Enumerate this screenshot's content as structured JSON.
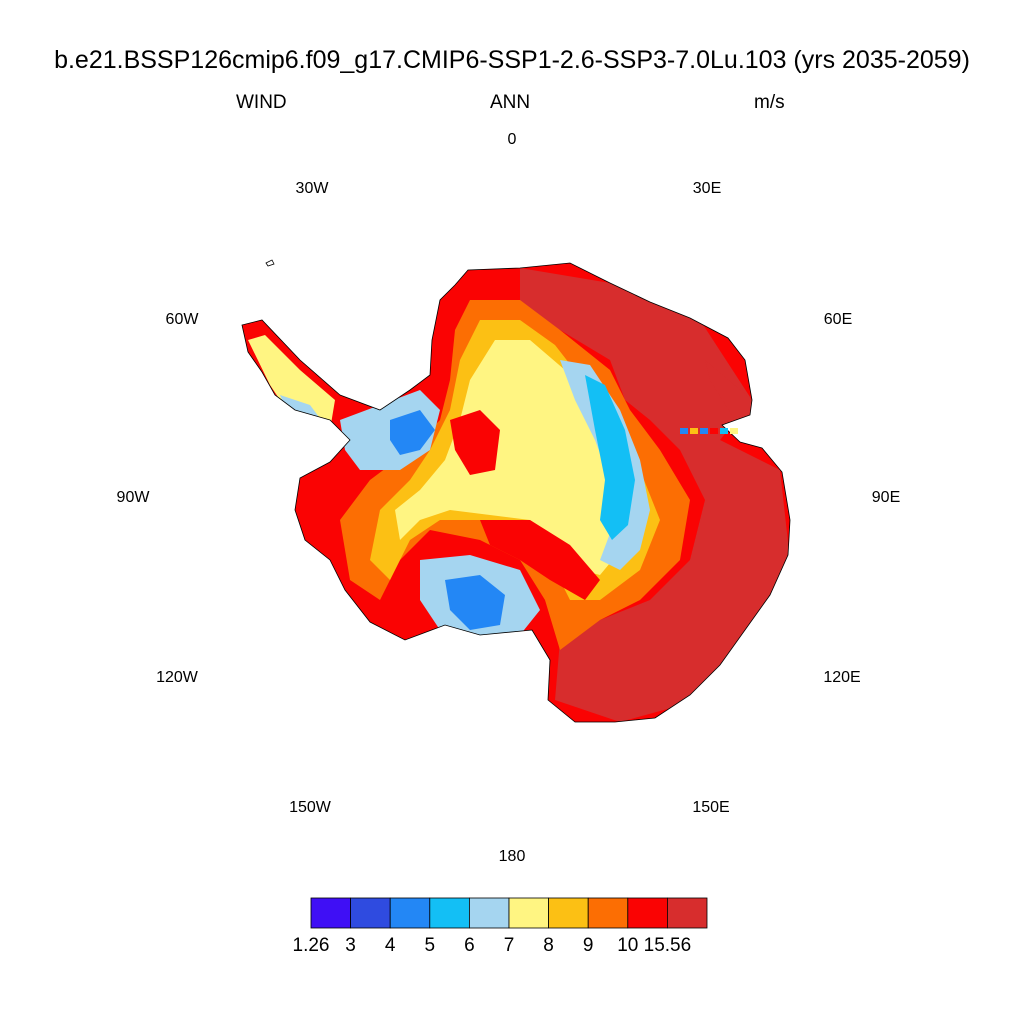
{
  "header": {
    "title": "b.e21.BSSP126cmip6.f09_g17.CMIP6-SSP1-2.6-SSP3-7.0Lu.103 (yrs 2035-2059)",
    "variable": "WIND",
    "season": "ANN",
    "units": "m/s"
  },
  "longitude_labels": [
    "0",
    "30E",
    "60E",
    "90E",
    "120E",
    "150E",
    "180",
    "150W",
    "120W",
    "90W",
    "60W",
    "30W"
  ],
  "colorbar": {
    "colors": [
      "#3f0ff5",
      "#2f4be0",
      "#2387f5",
      "#13bff5",
      "#a5d5f0",
      "#fff582",
      "#fcc014",
      "#fc6e03",
      "#fa0303",
      "#d72d2d"
    ],
    "labels": [
      "1.26",
      "3",
      "4",
      "5",
      "6",
      "7",
      "8",
      "9",
      "10",
      "15.56"
    ]
  },
  "map": {
    "projection": "south polar stereographic",
    "region": "Antarctica",
    "field": "annual mean near-surface wind speed",
    "coastline_color": "#000000"
  }
}
